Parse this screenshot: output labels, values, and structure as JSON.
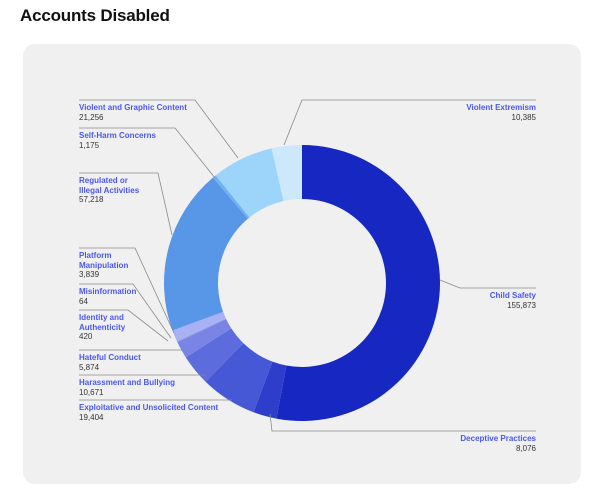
{
  "title": "Accounts Disabled",
  "chart_data": {
    "type": "pie",
    "variant": "donut",
    "title": "Accounts Disabled",
    "slices": [
      {
        "name": "Child Safety",
        "value": 155873,
        "value_label": "155,873",
        "color": "#1727c1"
      },
      {
        "name": "Deceptive Practices",
        "value": 8076,
        "value_label": "8,076",
        "color": "#2e3ecb"
      },
      {
        "name": "Exploitative and Unsolicited Content",
        "value": 19404,
        "value_label": "19,404",
        "color": "#4658d6"
      },
      {
        "name": "Harassment and Bullying",
        "value": 10671,
        "value_label": "10,671",
        "color": "#5d6cdd"
      },
      {
        "name": "Hateful Conduct",
        "value": 5874,
        "value_label": "5,874",
        "color": "#7a84e5"
      },
      {
        "name": "Identity and Authenticity",
        "value": 420,
        "value_label": "420",
        "color": "#8e98ec"
      },
      {
        "name": "Misinformation",
        "value": 64,
        "value_label": "64",
        "color": "#9aa3ef"
      },
      {
        "name": "Platform Manipulation",
        "value": 3839,
        "value_label": "3,839",
        "color": "#a9b1f5"
      },
      {
        "name": "Regulated or Illegal Activities",
        "value": 57218,
        "value_label": "57,218",
        "color": "#5896e8"
      },
      {
        "name": "Self-Harm Concerns",
        "value": 1175,
        "value_label": "1,175",
        "color": "#6eb2f2"
      },
      {
        "name": "Violent and Graphic Content",
        "value": 21256,
        "value_label": "21,256",
        "color": "#9dd4fa"
      },
      {
        "name": "Violent Extremism",
        "value": 10385,
        "value_label": "10,385",
        "color": "#cde8fb"
      }
    ],
    "labels": {
      "Regulated or Illegal Activities": [
        "Regulated or",
        "Illegal Activities"
      ],
      "Platform Manipulation": [
        "Platform",
        "Manipulation"
      ],
      "Identity and Authenticity": [
        "Identity and",
        "Authenticity"
      ]
    }
  }
}
